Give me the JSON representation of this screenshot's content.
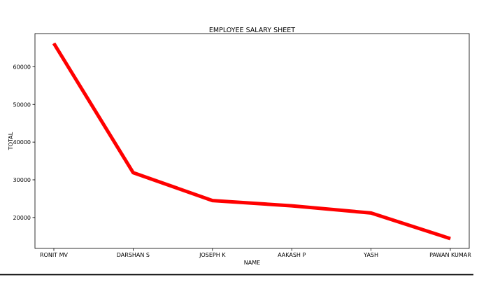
{
  "chart_data": {
    "type": "line",
    "title": "EMPLOYEE SALARY SHEET",
    "xlabel": "NAME",
    "ylabel": "TOTAL",
    "categories": [
      "RONIT MV",
      "DARSHAN S",
      "JOSEPH K",
      "AAKASH P",
      "YASH",
      "PAWAN KUMAR"
    ],
    "series": [
      {
        "values": [
          66200,
          31900,
          24500,
          23100,
          21200,
          14400
        ],
        "color": "#ff0000"
      }
    ],
    "yticks": [
      20000,
      30000,
      40000,
      50000,
      60000
    ],
    "ylim": [
      11800,
      68800
    ],
    "grid": false,
    "legend": "none"
  }
}
